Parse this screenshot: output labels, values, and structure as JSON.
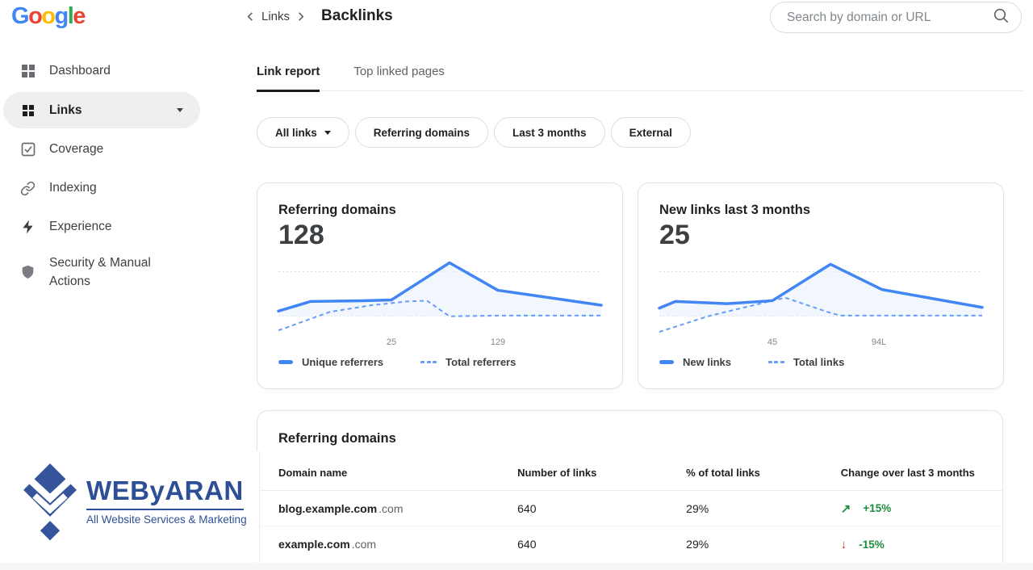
{
  "header": {
    "brand": {
      "name": "Google",
      "letters": [
        {
          "ch": "G",
          "color": "#4285F4"
        },
        {
          "ch": "o",
          "color": "#EA4335"
        },
        {
          "ch": "o",
          "color": "#FBBC05"
        },
        {
          "ch": "g",
          "color": "#4285F4"
        },
        {
          "ch": "l",
          "color": "#34A853"
        },
        {
          "ch": "e",
          "color": "#EA4335"
        }
      ]
    },
    "breadcrumb": {
      "back_label": "Links"
    },
    "page_title": "Backlinks",
    "search": {
      "placeholder": "Search by domain or URL"
    }
  },
  "sidebar": {
    "items": [
      {
        "label": "Dashboard",
        "icon": "dashboard-grid-icon",
        "selected": false
      },
      {
        "label": "Links",
        "icon": "links-grid-icon",
        "selected": true,
        "has_caret": true
      },
      {
        "label": "Coverage",
        "icon": "checkbox-icon",
        "selected": false
      },
      {
        "label": "Indexing",
        "icon": "link-icon",
        "selected": false
      },
      {
        "label": "Experience",
        "icon": "lightning-icon",
        "selected": false
      },
      {
        "label": "Security & Manual Actions",
        "icon": "shield-icon",
        "selected": false
      }
    ]
  },
  "tabs": [
    {
      "label": "Link report",
      "active": true
    },
    {
      "label": "Top linked pages",
      "active": false
    }
  ],
  "filter_chips": [
    {
      "label": "All links",
      "has_dropdown": true
    },
    {
      "label": "Referring domains",
      "has_dropdown": false
    },
    {
      "label": "Last 3 months",
      "has_dropdown": false
    },
    {
      "label": "External",
      "has_dropdown": false
    }
  ],
  "chart_data": [
    {
      "type": "line",
      "title": "Referring domains",
      "headline_value": "128",
      "x_axis_labels": [
        {
          "text": "25",
          "x_pct": 35
        },
        {
          "text": "129",
          "x_pct": 68
        }
      ],
      "series": [
        {
          "name": "Unique referrers",
          "style": "solid",
          "color": "#4285f4",
          "points_pct": [
            [
              0,
              71
            ],
            [
              10,
              58
            ],
            [
              26,
              57
            ],
            [
              35,
              56
            ],
            [
              53,
              6
            ],
            [
              68,
              43
            ],
            [
              84,
              53
            ],
            [
              100,
              63
            ]
          ]
        },
        {
          "name": "Total referrers",
          "style": "dashed",
          "color": "#669df6",
          "points_pct": [
            [
              0,
              97
            ],
            [
              16,
              72
            ],
            [
              29,
              63
            ],
            [
              40,
              58
            ],
            [
              46,
              57
            ],
            [
              53,
              78
            ],
            [
              69,
              77
            ],
            [
              100,
              77
            ]
          ]
        }
      ],
      "area_color": "#e8f0fe",
      "gridlines_y_pct": [
        18,
        78
      ],
      "legend_position": "bottom"
    },
    {
      "type": "line",
      "title": "New links last 3 months",
      "headline_value": "25",
      "x_axis_labels": [
        {
          "text": "45",
          "x_pct": 35
        },
        {
          "text": "94L",
          "x_pct": 68
        }
      ],
      "series": [
        {
          "name": "New links",
          "style": "solid",
          "color": "#4285f4",
          "points_pct": [
            [
              0,
              67
            ],
            [
              5,
              58
            ],
            [
              21,
              61
            ],
            [
              35,
              57
            ],
            [
              53,
              8
            ],
            [
              69,
              42
            ],
            [
              100,
              66
            ]
          ]
        },
        {
          "name": "Total links",
          "style": "dashed",
          "color": "#669df6",
          "points_pct": [
            [
              0,
              99
            ],
            [
              15,
              78
            ],
            [
              35,
              57
            ],
            [
              39,
              53
            ],
            [
              52,
              72
            ],
            [
              56,
              77
            ],
            [
              100,
              77
            ]
          ]
        }
      ],
      "area_color": "#e8f0fe",
      "gridlines_y_pct": [
        18,
        78
      ],
      "legend_position": "bottom"
    }
  ],
  "table": {
    "title": "Referring domains",
    "columns": [
      "Domain name",
      "Number of links",
      "% of total links",
      "Change over last 3 months"
    ],
    "rows": [
      {
        "domain": "blog.example.com",
        "domain_suffix": ".com",
        "links": "640",
        "pct": "29%",
        "change": {
          "direction": "up",
          "arrow": "↗",
          "arrow_color": "#1e8e3e",
          "value": "+15%",
          "value_color": "#1e8e3e"
        }
      },
      {
        "domain": "example.com",
        "domain_suffix": ".com",
        "links": "640",
        "pct": "29%",
        "change": {
          "direction": "down",
          "arrow": "↓",
          "arrow_color": "#d93025",
          "value": "-15%",
          "value_color": "#1e8e3e"
        }
      }
    ]
  },
  "watermark": {
    "title": "WEByARAN",
    "subtitle": "All Website Services & Marketing",
    "color": "#2d4f96"
  },
  "colors": {
    "accent_blue": "#4285f4",
    "dashed_blue": "#669df6",
    "green": "#1e8e3e",
    "red": "#d93025"
  }
}
